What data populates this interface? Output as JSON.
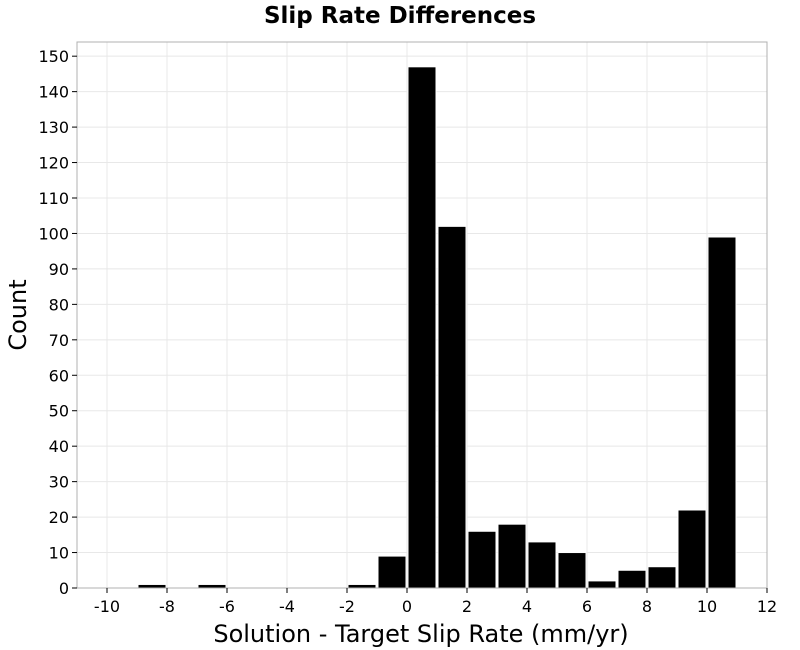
{
  "chart_data": {
    "type": "bar",
    "title": "Slip Rate Differences",
    "xlabel": "Solution - Target Slip Rate (mm/yr)",
    "ylabel": "Count",
    "xlim": [
      -11,
      12
    ],
    "ylim": [
      0,
      154
    ],
    "xticks": [
      -10,
      -8,
      -6,
      -4,
      -2,
      0,
      2,
      4,
      6,
      8,
      10,
      12
    ],
    "yticks": [
      0,
      10,
      20,
      30,
      40,
      50,
      60,
      70,
      80,
      90,
      100,
      110,
      120,
      130,
      140,
      150
    ],
    "bin_width": 1,
    "bins": [
      {
        "x": -9,
        "value": 0
      },
      {
        "x": -8.5,
        "value": 1
      },
      {
        "x": -7.5,
        "value": 0
      },
      {
        "x": -6.5,
        "value": 1
      },
      {
        "x": -5.5,
        "value": 0
      },
      {
        "x": -4.5,
        "value": 0
      },
      {
        "x": -3.5,
        "value": 0
      },
      {
        "x": -2.5,
        "value": 0
      },
      {
        "x": -1.5,
        "value": 1
      },
      {
        "x": -0.5,
        "value": 9
      },
      {
        "x": 0.5,
        "value": 147
      },
      {
        "x": 1.5,
        "value": 102
      },
      {
        "x": 2.5,
        "value": 16
      },
      {
        "x": 3.5,
        "value": 18
      },
      {
        "x": 4.5,
        "value": 13
      },
      {
        "x": 5.5,
        "value": 10
      },
      {
        "x": 6.5,
        "value": 2
      },
      {
        "x": 7.5,
        "value": 5
      },
      {
        "x": 8.5,
        "value": 6
      },
      {
        "x": 9.5,
        "value": 22
      },
      {
        "x": 10.5,
        "value": 99
      }
    ],
    "grid": true,
    "bar_color": "#000000",
    "bar_edge_color": "#ffffff",
    "grid_color": "#e8e8e8",
    "frame_color": "#b0b0b0"
  }
}
